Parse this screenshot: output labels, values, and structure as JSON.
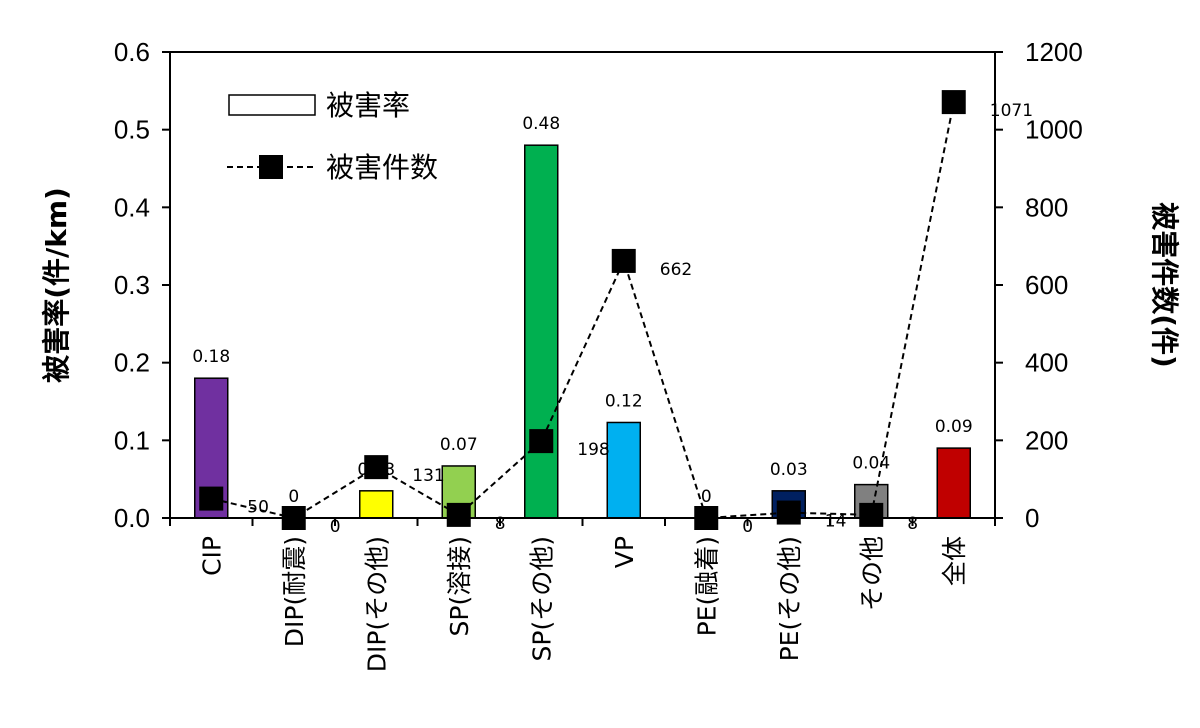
{
  "chart_data": {
    "type": "bar+line",
    "categories": [
      "CIP",
      "DIP(耐震)",
      "DIP(その他)",
      "SP(溶接)",
      "SP(その他)",
      "VP",
      "PE(融着)",
      "PE(その他)",
      "その他",
      "全体"
    ],
    "series": [
      {
        "name": "被害率",
        "type": "bar",
        "axis": "left",
        "values": [
          0.18,
          0,
          0.03,
          0.07,
          0.48,
          0.12,
          0,
          0.03,
          0.04,
          0.09
        ],
        "labels": [
          "0.18",
          "0",
          "0.03",
          "0.07",
          "0.48",
          "0.12",
          "0",
          "0.03",
          "0.04",
          "0.09"
        ],
        "bar_heights": [
          0.18,
          0,
          0.035,
          0.067,
          0.48,
          0.123,
          0,
          0.035,
          0.043,
          0.09
        ],
        "colors": [
          "#7030a0",
          "#ffffff",
          "#ffff00",
          "#92d050",
          "#00b050",
          "#00b0f0",
          "#ffffff",
          "#002060",
          "#808080",
          "#c00000"
        ]
      },
      {
        "name": "被害件数",
        "type": "line",
        "axis": "right",
        "values": [
          50,
          0,
          131,
          8,
          198,
          662,
          0,
          14,
          8,
          1071
        ],
        "labels": [
          "50",
          "0",
          "131",
          "8",
          "198",
          "662",
          "0",
          "14",
          "8",
          "1071"
        ],
        "marker": "square",
        "line_style": "dashed"
      }
    ],
    "ylabel": "被害率(件/km)",
    "y2label": "被害件数(件)",
    "ylim": [
      0,
      0.6
    ],
    "y2lim": [
      0,
      1200
    ],
    "yticks": [
      "0.0",
      "0.1",
      "0.2",
      "0.3",
      "0.4",
      "0.5",
      "0.6"
    ],
    "y2ticks": [
      "0",
      "200",
      "400",
      "600",
      "800",
      "1000",
      "1200"
    ],
    "legend_position": "top-left",
    "grid": false
  }
}
